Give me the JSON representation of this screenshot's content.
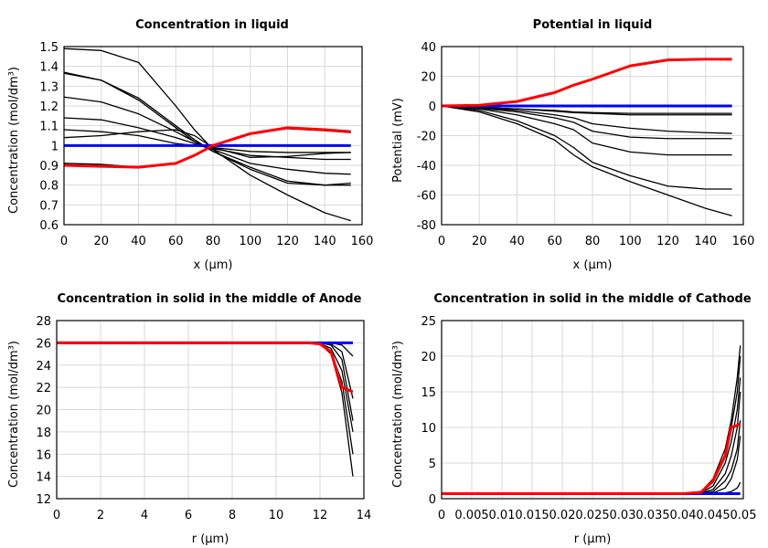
{
  "chart_data": [
    {
      "type": "line",
      "title": "Concentration in liquid",
      "xlabel": "x (µm)",
      "ylabel": "Concentration (mol/dm³)",
      "xlim": [
        0,
        160
      ],
      "ylim": [
        0.6,
        1.5
      ],
      "xticks": [
        0,
        20,
        40,
        60,
        80,
        100,
        120,
        140,
        160
      ],
      "xtick_labels": [
        "0",
        "20",
        "40",
        "60",
        "80",
        "100",
        "120",
        "140",
        "160"
      ],
      "yticks": [
        0.6,
        0.7,
        0.8,
        0.9,
        1,
        1.1,
        1.2,
        1.3,
        1.4,
        1.5
      ],
      "ytick_labels": [
        "0.6",
        "0.7",
        "0.8",
        "0.9",
        "1",
        "1.1",
        "1.2",
        "1.3",
        "1.4",
        "1.5"
      ],
      "grid": true,
      "x": [
        0,
        20,
        40,
        60,
        70,
        80,
        100,
        120,
        140,
        154
      ],
      "series": [
        {
          "color": "#000000",
          "values": [
            1.49,
            1.48,
            1.42,
            1.2,
            1.08,
            0.98,
            0.85,
            0.75,
            0.66,
            0.62
          ]
        },
        {
          "color": "#000000",
          "values": [
            1.37,
            1.33,
            1.24,
            1.1,
            1.03,
            0.97,
            0.88,
            0.81,
            0.8,
            0.8
          ]
        },
        {
          "color": "#000000",
          "values": [
            1.365,
            1.33,
            1.23,
            1.09,
            1.02,
            0.97,
            0.89,
            0.82,
            0.8,
            0.81
          ]
        },
        {
          "color": "#000000",
          "values": [
            1.245,
            1.22,
            1.16,
            1.07,
            1.02,
            0.98,
            0.91,
            0.88,
            0.86,
            0.855
          ]
        },
        {
          "color": "#000000",
          "values": [
            1.14,
            1.13,
            1.09,
            1.04,
            1.01,
            0.985,
            0.95,
            0.94,
            0.93,
            0.93
          ]
        },
        {
          "color": "#000000",
          "values": [
            1.08,
            1.07,
            1.05,
            1.01,
            1.0,
            0.99,
            0.97,
            0.965,
            0.965,
            0.965
          ]
        },
        {
          "color": "#000000",
          "values": [
            1.04,
            1.05,
            1.07,
            1.08,
            1.05,
            0.99,
            0.94,
            0.945,
            0.96,
            0.965
          ]
        },
        {
          "color": "#000000",
          "values": [
            0.91,
            0.905,
            0.89,
            0.91,
            0.95,
            1.0,
            1.06,
            1.085,
            1.075,
            1.065
          ]
        },
        {
          "color": "#0000ff",
          "values": [
            1,
            1,
            1,
            1,
            1,
            1,
            1,
            1,
            1,
            1
          ]
        },
        {
          "color": "#ff0000",
          "values": [
            0.9,
            0.895,
            0.89,
            0.91,
            0.95,
            1.0,
            1.06,
            1.09,
            1.08,
            1.07
          ]
        }
      ]
    },
    {
      "type": "line",
      "title": "Potential in liquid",
      "xlabel": "x (µm)",
      "ylabel": "Potential (mV)",
      "xlim": [
        0,
        160
      ],
      "ylim": [
        -80,
        40
      ],
      "xticks": [
        0,
        20,
        40,
        60,
        80,
        100,
        120,
        140,
        160
      ],
      "xtick_labels": [
        "0",
        "20",
        "40",
        "60",
        "80",
        "100",
        "120",
        "140",
        "160"
      ],
      "yticks": [
        -80,
        -60,
        -40,
        -20,
        0,
        20,
        40
      ],
      "ytick_labels": [
        "-80",
        "-60",
        "-40",
        "-20",
        "0",
        "20",
        "40"
      ],
      "grid": true,
      "x": [
        0,
        20,
        40,
        60,
        70,
        80,
        100,
        120,
        140,
        154
      ],
      "series": [
        {
          "color": "#000000",
          "values": [
            0,
            -1,
            -2,
            -3,
            -4,
            -4.5,
            -5,
            -5,
            -5,
            -5
          ]
        },
        {
          "color": "#000000",
          "values": [
            0,
            -1,
            -2,
            -3.5,
            -4.5,
            -5,
            -6,
            -6,
            -6,
            -6
          ]
        },
        {
          "color": "#000000",
          "values": [
            0,
            -1,
            -3,
            -6,
            -8,
            -12,
            -15,
            -17,
            -18,
            -18.5
          ]
        },
        {
          "color": "#000000",
          "values": [
            0,
            -1.5,
            -4,
            -8,
            -11,
            -17,
            -21,
            -22,
            -22,
            -22
          ]
        },
        {
          "color": "#000000",
          "values": [
            0,
            -2,
            -6,
            -12,
            -16,
            -25,
            -31,
            -33,
            -33,
            -33
          ]
        },
        {
          "color": "#000000",
          "values": [
            0,
            -3,
            -10,
            -20,
            -28,
            -38,
            -47,
            -54,
            -56,
            -56
          ]
        },
        {
          "color": "#000000",
          "values": [
            0,
            -4,
            -12,
            -23,
            -33,
            -41,
            -51,
            -60,
            -69,
            -74
          ]
        },
        {
          "color": "#0000ff",
          "values": [
            0,
            0,
            0,
            0,
            0,
            0,
            0,
            0,
            0,
            0
          ]
        },
        {
          "color": "#ff0000",
          "values": [
            0,
            0.5,
            3,
            9,
            14,
            18,
            27,
            31,
            31.5,
            31.5
          ]
        }
      ]
    },
    {
      "type": "line",
      "title": "Concentration in solid in the middle of Anode",
      "xlabel": "r (µm)",
      "ylabel": "Concentration (mol/dm³)",
      "xlim": [
        0,
        14
      ],
      "ylim": [
        12,
        28
      ],
      "xticks": [
        0,
        2,
        4,
        6,
        8,
        10,
        12,
        14
      ],
      "xtick_labels": [
        "0",
        "2",
        "4",
        "6",
        "8",
        "10",
        "12",
        "14"
      ],
      "yticks": [
        12,
        14,
        16,
        18,
        20,
        22,
        24,
        26,
        28
      ],
      "ytick_labels": [
        "12",
        "14",
        "16",
        "18",
        "20",
        "22",
        "24",
        "26",
        "28"
      ],
      "grid": true,
      "x": [
        0,
        10,
        11,
        11.5,
        12,
        12.5,
        13,
        13.5
      ],
      "series": [
        {
          "color": "#000000",
          "values": [
            26,
            26,
            26,
            26,
            26,
            26,
            25.8,
            24.8
          ]
        },
        {
          "color": "#000000",
          "values": [
            26,
            26,
            26,
            26,
            26,
            25.9,
            25.2,
            21
          ]
        },
        {
          "color": "#000000",
          "values": [
            26,
            26,
            26,
            26,
            26,
            25.8,
            24.5,
            19
          ]
        },
        {
          "color": "#000000",
          "values": [
            26,
            26,
            26,
            26,
            25.95,
            25.5,
            23.5,
            18
          ]
        },
        {
          "color": "#000000",
          "values": [
            26,
            26,
            26,
            26,
            25.9,
            25.2,
            22.5,
            16
          ]
        },
        {
          "color": "#000000",
          "values": [
            26,
            26,
            26,
            26,
            25.9,
            25,
            21.5,
            14
          ]
        },
        {
          "color": "#0000ff",
          "values": [
            26,
            26,
            26,
            26,
            26,
            26,
            26,
            26
          ]
        },
        {
          "color": "#ff0000",
          "values": [
            26,
            26,
            26,
            26,
            25.9,
            25.2,
            22,
            21.6
          ]
        }
      ]
    },
    {
      "type": "line",
      "title": "Concentration in solid in the middle of Cathode",
      "xlabel": "r (µm)",
      "ylabel": "Concentration (mol/dm³)",
      "xlim": [
        0,
        0.05
      ],
      "ylim": [
        0,
        25
      ],
      "xticks": [
        0,
        0.005,
        0.01,
        0.015,
        0.02,
        0.025,
        0.03,
        0.035,
        0.04,
        0.045,
        0.05
      ],
      "xtick_labels": [
        "0",
        "0.005",
        "0.01",
        "0.015",
        "0.02",
        "0.025",
        "0.03",
        "0.035",
        "0.04",
        "0.045",
        "0.05"
      ],
      "yticks": [
        0,
        5,
        10,
        15,
        20,
        25
      ],
      "ytick_labels": [
        "0",
        "5",
        "10",
        "15",
        "20",
        "25"
      ],
      "grid": true,
      "x": [
        0,
        0.04,
        0.043,
        0.045,
        0.047,
        0.048,
        0.049,
        0.0495
      ],
      "series": [
        {
          "color": "#000000",
          "values": [
            0.7,
            0.7,
            1,
            2.8,
            7,
            11,
            17,
            21.5
          ]
        },
        {
          "color": "#000000",
          "values": [
            0.7,
            0.7,
            0.9,
            2.3,
            6,
            10,
            15,
            20
          ]
        },
        {
          "color": "#000000",
          "values": [
            0.7,
            0.7,
            0.8,
            1.8,
            5,
            8,
            12.5,
            17
          ]
        },
        {
          "color": "#000000",
          "values": [
            0.7,
            0.7,
            0.75,
            1.3,
            3.5,
            6,
            10,
            15
          ]
        },
        {
          "color": "#000000",
          "values": [
            0.7,
            0.7,
            0.7,
            1,
            2.5,
            4,
            7,
            11
          ]
        },
        {
          "color": "#000000",
          "values": [
            0.7,
            0.7,
            0.7,
            0.8,
            1.5,
            2.8,
            5.5,
            8.8
          ]
        },
        {
          "color": "#000000",
          "values": [
            0.7,
            0.7,
            0.7,
            0.7,
            0.8,
            1,
            1.5,
            2.3
          ]
        },
        {
          "color": "#0000ff",
          "values": [
            0.7,
            0.7,
            0.7,
            0.7,
            0.7,
            0.7,
            0.7,
            0.7
          ]
        },
        {
          "color": "#ff0000",
          "values": [
            0.7,
            0.7,
            0.9,
            2.5,
            6,
            10,
            10.3,
            10.5
          ]
        }
      ]
    }
  ]
}
